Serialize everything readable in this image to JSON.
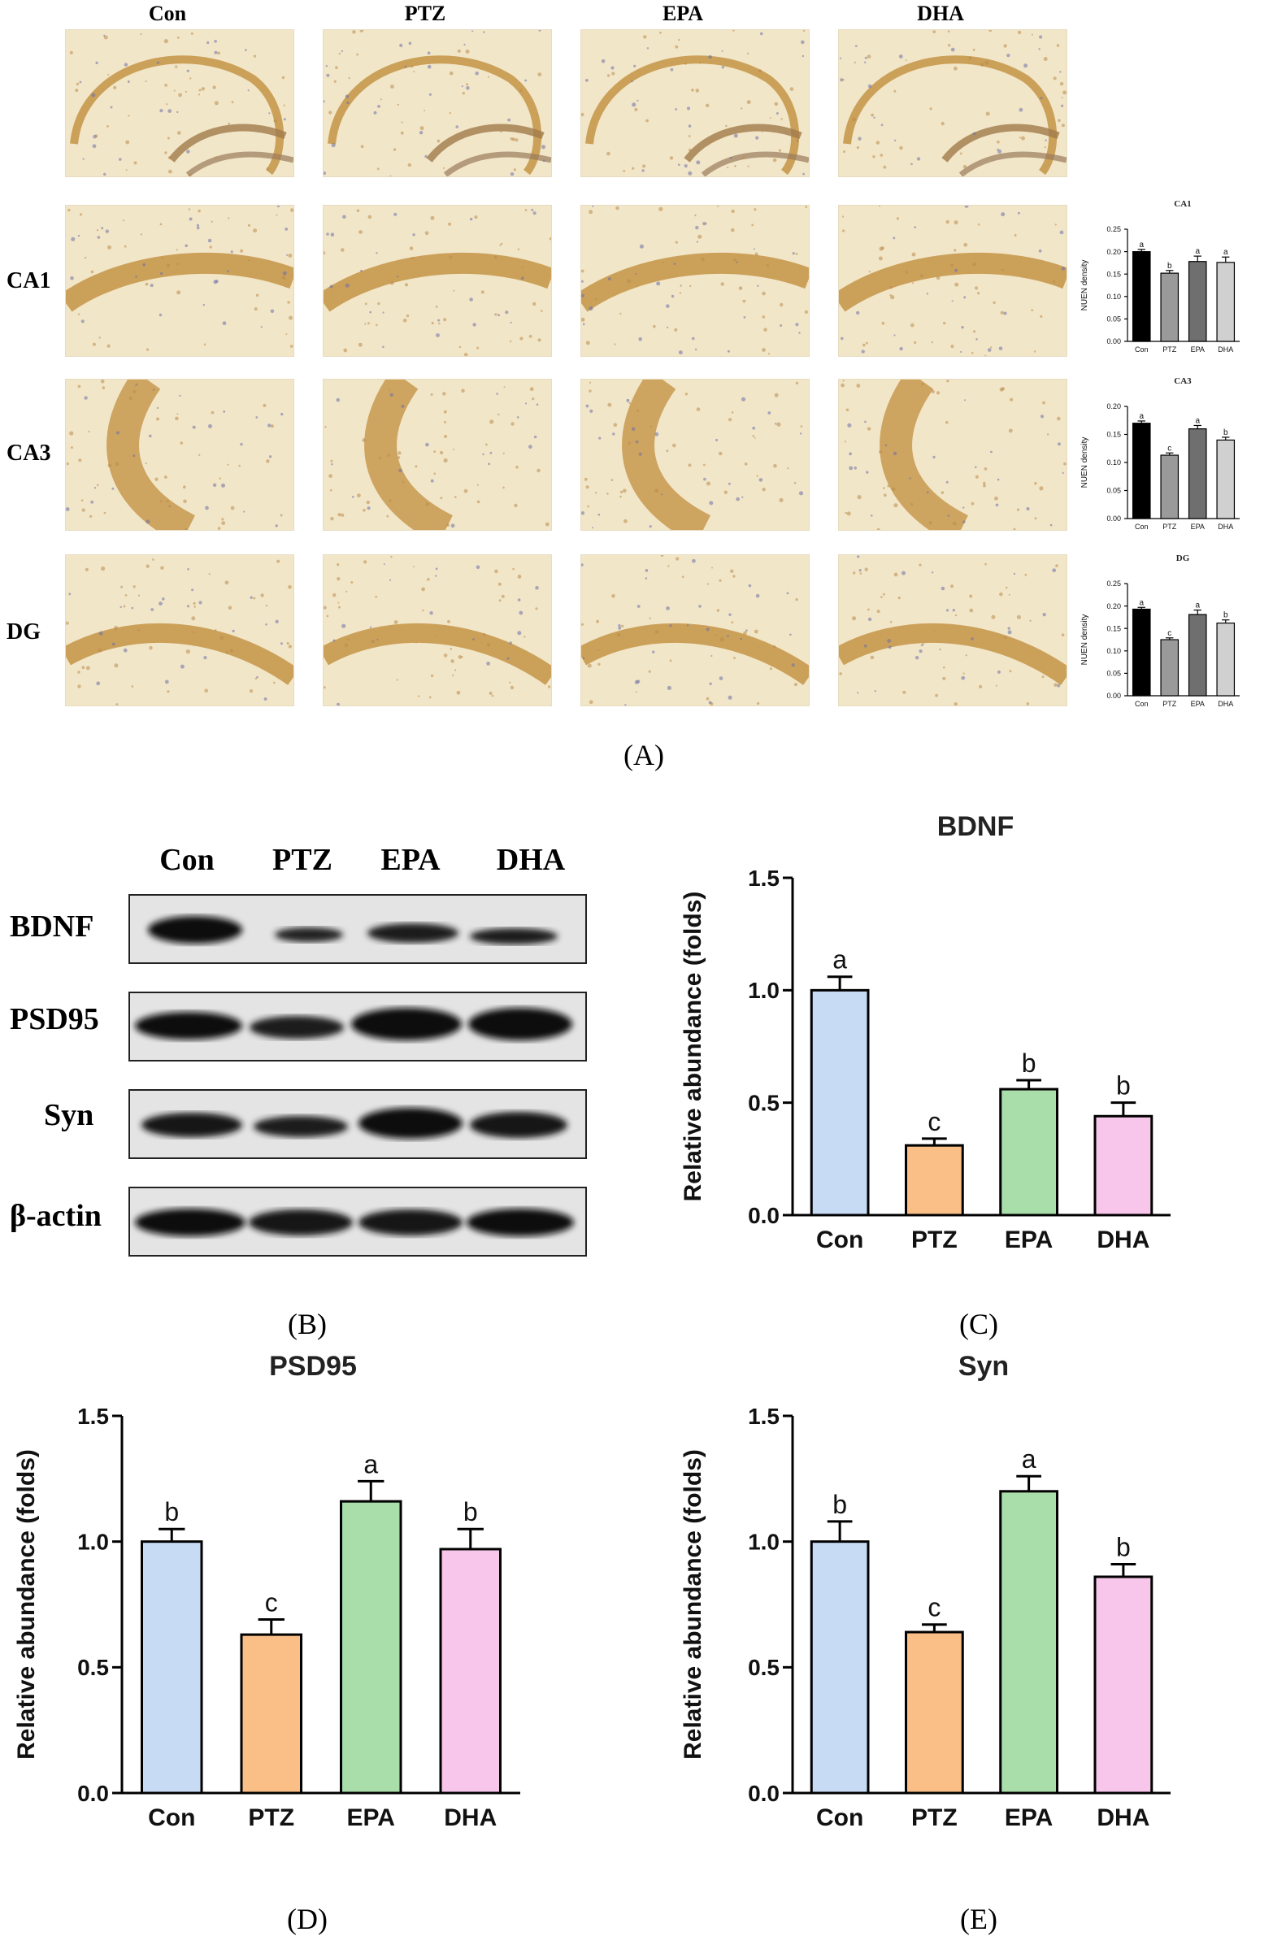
{
  "panelA": {
    "columns": [
      "Con",
      "PTZ",
      "EPA",
      "DHA"
    ],
    "rows": [
      "CA1",
      "CA3",
      "DG"
    ],
    "caption": "(A)"
  },
  "panelB": {
    "columns": [
      "Con",
      "PTZ",
      "EPA",
      "DHA"
    ],
    "rows": [
      "BDNF",
      "PSD95",
      "Syn",
      "β-actin"
    ],
    "caption": "(B)"
  },
  "captions": {
    "C": "(C)",
    "D": "(D)",
    "E": "(E)"
  },
  "colors": {
    "con": "#c7dbf5",
    "ptz": "#f9bf86",
    "epa": "#a9ddaa",
    "dha": "#f7c6ea",
    "stain": "#c49447",
    "tissue": "#f2e6c8"
  },
  "chart_data": [
    {
      "id": "mini-CA1",
      "type": "bar",
      "title": "CA1",
      "ylabel": "NUEN density",
      "categories": [
        "Con",
        "PTZ",
        "EPA",
        "DHA"
      ],
      "values": [
        0.2,
        0.152,
        0.178,
        0.176
      ],
      "errors": [
        0.005,
        0.006,
        0.012,
        0.012
      ],
      "letters": [
        "a",
        "b",
        "a",
        "a"
      ],
      "ylim": [
        0,
        0.25
      ],
      "yticks": [
        "0.00",
        "0.05",
        "0.10",
        "0.15",
        "0.20",
        "0.25"
      ],
      "bar_colors": [
        "#000000",
        "#9a9a9a",
        "#6f6f6f",
        "#d0d0d0"
      ]
    },
    {
      "id": "mini-CA3",
      "type": "bar",
      "title": "CA3",
      "ylabel": "NUEN density",
      "categories": [
        "Con",
        "PTZ",
        "EPA",
        "DHA"
      ],
      "values": [
        0.17,
        0.113,
        0.16,
        0.14
      ],
      "errors": [
        0.004,
        0.004,
        0.006,
        0.005
      ],
      "letters": [
        "a",
        "c",
        "a",
        "b"
      ],
      "ylim": [
        0,
        0.2
      ],
      "yticks": [
        "0.00",
        "0.05",
        "0.10",
        "0.15",
        "0.20"
      ],
      "bar_colors": [
        "#000000",
        "#9a9a9a",
        "#6f6f6f",
        "#d0d0d0"
      ]
    },
    {
      "id": "mini-DG",
      "type": "bar",
      "title": "DG",
      "ylabel": "NUEN density",
      "categories": [
        "Con",
        "PTZ",
        "EPA",
        "DHA"
      ],
      "values": [
        0.193,
        0.125,
        0.181,
        0.162
      ],
      "errors": [
        0.004,
        0.004,
        0.01,
        0.007
      ],
      "letters": [
        "a",
        "c",
        "a",
        "b"
      ],
      "ylim": [
        0,
        0.25
      ],
      "yticks": [
        "0.00",
        "0.05",
        "0.10",
        "0.15",
        "0.20",
        "0.25"
      ],
      "bar_colors": [
        "#000000",
        "#9a9a9a",
        "#6f6f6f",
        "#d0d0d0"
      ]
    },
    {
      "id": "chart-C",
      "type": "bar",
      "title": "BDNF",
      "ylabel": "Relative abundance (folds)",
      "categories": [
        "Con",
        "PTZ",
        "EPA",
        "DHA"
      ],
      "values": [
        1.0,
        0.31,
        0.56,
        0.44
      ],
      "errors": [
        0.06,
        0.03,
        0.04,
        0.06
      ],
      "letters": [
        "a",
        "c",
        "b",
        "b"
      ],
      "ylim": [
        0,
        1.5
      ],
      "yticks": [
        "0.0",
        "0.5",
        "1.0",
        "1.5"
      ],
      "bar_colors": [
        "#c7dbf5",
        "#f9bf86",
        "#a9ddaa",
        "#f7c6ea"
      ]
    },
    {
      "id": "chart-D",
      "type": "bar",
      "title": "PSD95",
      "ylabel": "Relative abundance (folds)",
      "categories": [
        "Con",
        "PTZ",
        "EPA",
        "DHA"
      ],
      "values": [
        1.0,
        0.63,
        1.16,
        0.97
      ],
      "errors": [
        0.05,
        0.06,
        0.08,
        0.08
      ],
      "letters": [
        "b",
        "c",
        "a",
        "b"
      ],
      "ylim": [
        0,
        1.5
      ],
      "yticks": [
        "0.0",
        "0.5",
        "1.0",
        "1.5"
      ],
      "bar_colors": [
        "#c7dbf5",
        "#f9bf86",
        "#a9ddaa",
        "#f7c6ea"
      ]
    },
    {
      "id": "chart-E",
      "type": "bar",
      "title": "Syn",
      "ylabel": "Relative abundance (folds)",
      "categories": [
        "Con",
        "PTZ",
        "EPA",
        "DHA"
      ],
      "values": [
        1.0,
        0.64,
        1.2,
        0.86
      ],
      "errors": [
        0.08,
        0.03,
        0.06,
        0.05
      ],
      "letters": [
        "b",
        "c",
        "a",
        "b"
      ],
      "ylim": [
        0,
        1.5
      ],
      "yticks": [
        "0.0",
        "0.5",
        "1.0",
        "1.5"
      ],
      "bar_colors": [
        "#c7dbf5",
        "#f9bf86",
        "#a9ddaa",
        "#f7c6ea"
      ]
    }
  ]
}
